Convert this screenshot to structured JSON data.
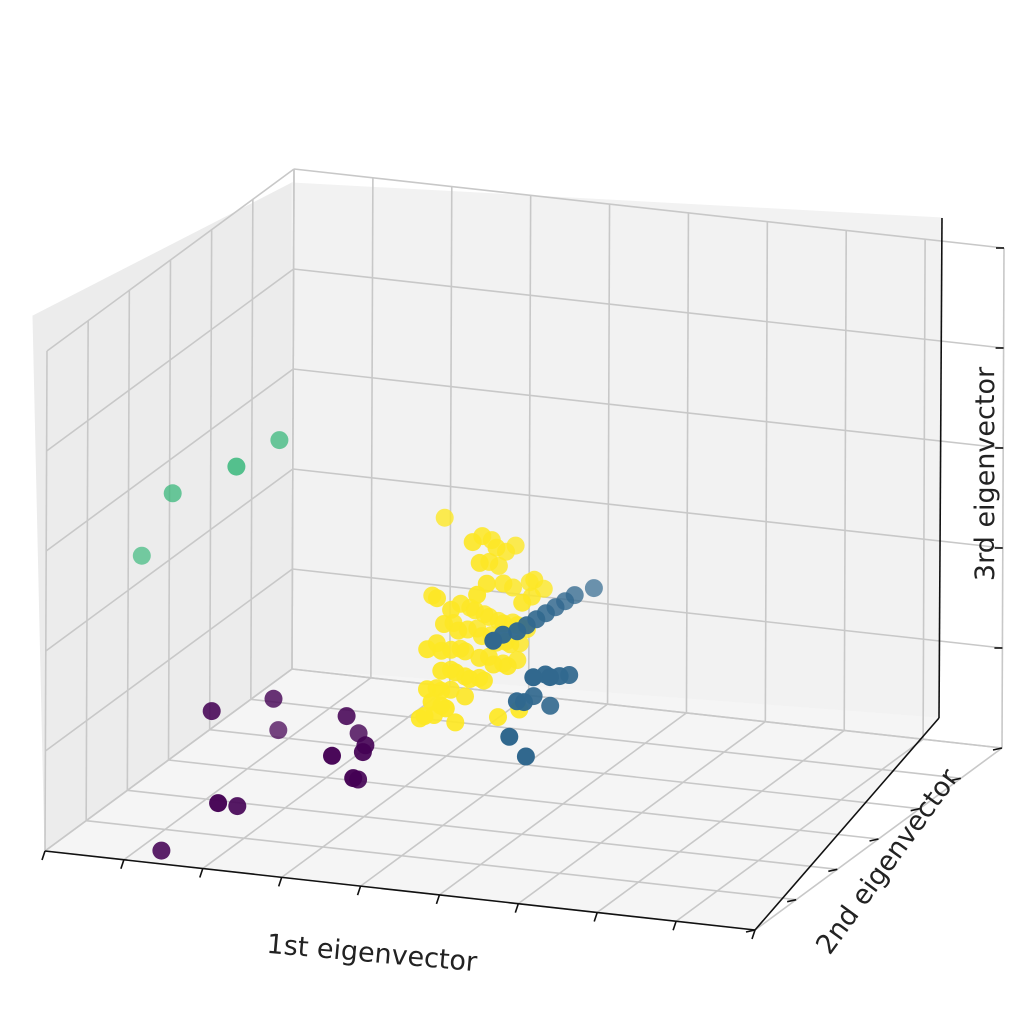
{
  "chart_data": {
    "type": "scatter",
    "projection": "3d",
    "xlabel": "1st eigenvector",
    "ylabel": "2nd eigenvector",
    "zlabel": "3rd eigenvector",
    "tick_labels_visible": false,
    "grid": true,
    "legend": "none",
    "colormap": "viridis",
    "groups": [
      {
        "color": "#440154",
        "points": [
          [
            22,
            4,
            30
          ],
          [
            26,
            3,
            12
          ],
          [
            30,
            6,
            33
          ],
          [
            40,
            1,
            25
          ],
          [
            43,
            3,
            20
          ],
          [
            44,
            2,
            26
          ],
          [
            41,
            4,
            32
          ],
          [
            24,
            1,
            13
          ],
          [
            44,
            3,
            27
          ],
          [
            42,
            6,
            28
          ],
          [
            30,
            8,
            26
          ],
          [
            43,
            1,
            21
          ],
          [
            15,
            4,
            1
          ]
        ]
      },
      {
        "color": "#31688e",
        "points": [
          [
            68,
            -1,
            30
          ],
          [
            66,
            -2,
            34
          ],
          [
            69,
            -1,
            46
          ],
          [
            70,
            1,
            46
          ],
          [
            71,
            0,
            46
          ],
          [
            72,
            1,
            46
          ],
          [
            73,
            2,
            46
          ],
          [
            63,
            0,
            52
          ],
          [
            64,
            1,
            53
          ],
          [
            66,
            1,
            54
          ],
          [
            67,
            2,
            55
          ],
          [
            68,
            3,
            56
          ],
          [
            69,
            4,
            57
          ],
          [
            70,
            5,
            58
          ],
          [
            71,
            6,
            59
          ],
          [
            72,
            7,
            60
          ],
          [
            74,
            9,
            61
          ],
          [
            66,
            1,
            40
          ],
          [
            67,
            1,
            40
          ],
          [
            68,
            2,
            41
          ],
          [
            70,
            3,
            39
          ]
        ]
      },
      {
        "color": "#35b779",
        "points": [
          [
            30,
            8,
            84
          ],
          [
            25,
            5,
            79
          ],
          [
            15,
            8,
            71
          ],
          [
            10,
            10,
            57
          ]
        ]
      },
      {
        "color": "#fde725",
        "points": [
          [
            54,
            6,
            73
          ],
          [
            59,
            3,
            70
          ],
          [
            60,
            4,
            71
          ],
          [
            61,
            5,
            70
          ],
          [
            62,
            4,
            69
          ],
          [
            63,
            5,
            68
          ],
          [
            64,
            6,
            69
          ],
          [
            60,
            3,
            66
          ],
          [
            61,
            4,
            66
          ],
          [
            62,
            5,
            65
          ],
          [
            60,
            2,
            60
          ],
          [
            61,
            3,
            62
          ],
          [
            63,
            4,
            62
          ],
          [
            64,
            5,
            61
          ],
          [
            66,
            6,
            62
          ],
          [
            67,
            5,
            63
          ],
          [
            68,
            6,
            61
          ],
          [
            66,
            3,
            59
          ],
          [
            67,
            4,
            60
          ],
          [
            53,
            4,
            58
          ],
          [
            54,
            3,
            58
          ],
          [
            56,
            3,
            56
          ],
          [
            57,
            4,
            57
          ],
          [
            58,
            5,
            56
          ],
          [
            59,
            4,
            56
          ],
          [
            60,
            5,
            55
          ],
          [
            61,
            4,
            55
          ],
          [
            62,
            5,
            54
          ],
          [
            63,
            4,
            54
          ],
          [
            64,
            5,
            54
          ],
          [
            65,
            4,
            54
          ],
          [
            66,
            5,
            53
          ],
          [
            55,
            3,
            53
          ],
          [
            56,
            4,
            53
          ],
          [
            57,
            3,
            52
          ],
          [
            58,
            4,
            52
          ],
          [
            59,
            5,
            52
          ],
          [
            60,
            4,
            51
          ],
          [
            61,
            5,
            51
          ],
          [
            62,
            4,
            50
          ],
          [
            63,
            5,
            50
          ],
          [
            64,
            4,
            50
          ],
          [
            65,
            5,
            50
          ],
          [
            53,
            2,
            48
          ],
          [
            54,
            3,
            49
          ],
          [
            55,
            2,
            48
          ],
          [
            56,
            3,
            48
          ],
          [
            57,
            4,
            48
          ],
          [
            58,
            3,
            48
          ],
          [
            60,
            3,
            47
          ],
          [
            61,
            4,
            47
          ],
          [
            62,
            3,
            46
          ],
          [
            63,
            4,
            46
          ],
          [
            64,
            3,
            46
          ],
          [
            65,
            4,
            47
          ],
          [
            55,
            2,
            44
          ],
          [
            56,
            3,
            44
          ],
          [
            57,
            2,
            44
          ],
          [
            58,
            3,
            43
          ],
          [
            59,
            2,
            43
          ],
          [
            60,
            3,
            43
          ],
          [
            61,
            2,
            43
          ],
          [
            53,
            2,
            40
          ],
          [
            54,
            3,
            40
          ],
          [
            55,
            2,
            40
          ],
          [
            56,
            3,
            40
          ],
          [
            58,
            3,
            39
          ],
          [
            54,
            1,
            38
          ],
          [
            55,
            2,
            37
          ],
          [
            56,
            1,
            37
          ],
          [
            63,
            2,
            36
          ],
          [
            52,
            2,
            34
          ],
          [
            53,
            1,
            35
          ],
          [
            54,
            2,
            35
          ],
          [
            57,
            2,
            34
          ],
          [
            66,
            2,
            38
          ]
        ]
      }
    ]
  }
}
